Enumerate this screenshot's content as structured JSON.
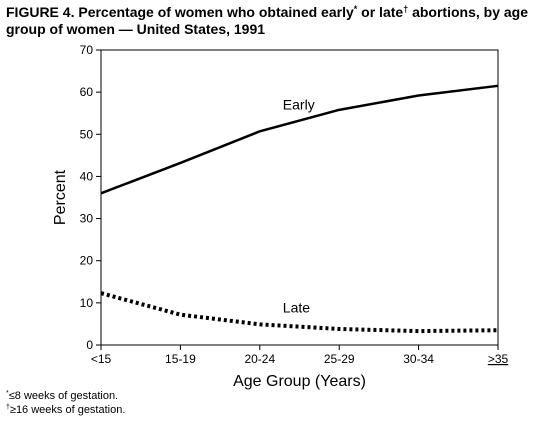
{
  "figure": {
    "label": "FIGURE 4.",
    "title_part1": "Percentage of women who obtained early",
    "early_mark": "*",
    "title_part2": " or late",
    "late_mark": "†",
    "title_part3": " abortions, by age group of women — United States, 1991"
  },
  "footnotes": [
    {
      "mark": "*",
      "text": "≤8 weeks of gestation."
    },
    {
      "mark": "†",
      "text": "≥16 weeks of gestation."
    }
  ],
  "chart_data": {
    "type": "line",
    "title": "Percentage of women who obtained early or late abortions, by age group of women — United States, 1991",
    "xlabel": "Age Group (Years)",
    "ylabel": "Percent",
    "categories": [
      "<15",
      "15-19",
      "20-24",
      "25-29",
      "30-34",
      "≥35"
    ],
    "ylim": [
      0,
      70
    ],
    "yticks": [
      0,
      10,
      20,
      30,
      40,
      50,
      60,
      70
    ],
    "grid": false,
    "series": [
      {
        "name": "Early",
        "values": [
          36.0,
          43.2,
          50.7,
          55.8,
          59.2,
          61.5
        ],
        "style": "solid",
        "color": "#000000"
      },
      {
        "name": "Late",
        "values": [
          12.3,
          7.2,
          4.9,
          3.8,
          3.3,
          3.5
        ],
        "style": "dotted",
        "color": "#000000"
      }
    ]
  }
}
